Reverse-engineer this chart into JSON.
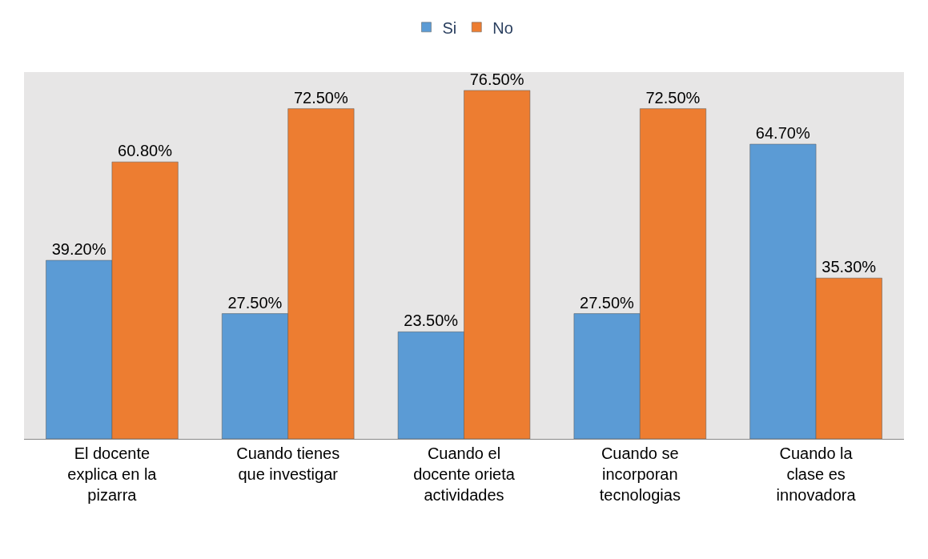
{
  "chart_data": {
    "type": "bar",
    "categories": [
      "El docente explica en la pizarra",
      "Cuando tienes que investigar",
      "Cuando el docente orieta actividades",
      "Cuando se incorporan tecnologias",
      "Cuando la clase es innovadora"
    ],
    "series": [
      {
        "name": "Si",
        "color": "#5b9bd5",
        "values": [
          39.2,
          27.5,
          23.5,
          27.5,
          64.7
        ],
        "value_labels": [
          "39.20%",
          "27.50%",
          "23.50%",
          "27.50%",
          "64.70%"
        ]
      },
      {
        "name": "No",
        "color": "#ed7d31",
        "values": [
          60.8,
          72.5,
          76.5,
          72.5,
          35.3
        ],
        "value_labels": [
          "60.80%",
          "72.50%",
          "76.50%",
          "72.50%",
          "35.30%"
        ]
      }
    ],
    "legend": "top",
    "grid": false
  }
}
